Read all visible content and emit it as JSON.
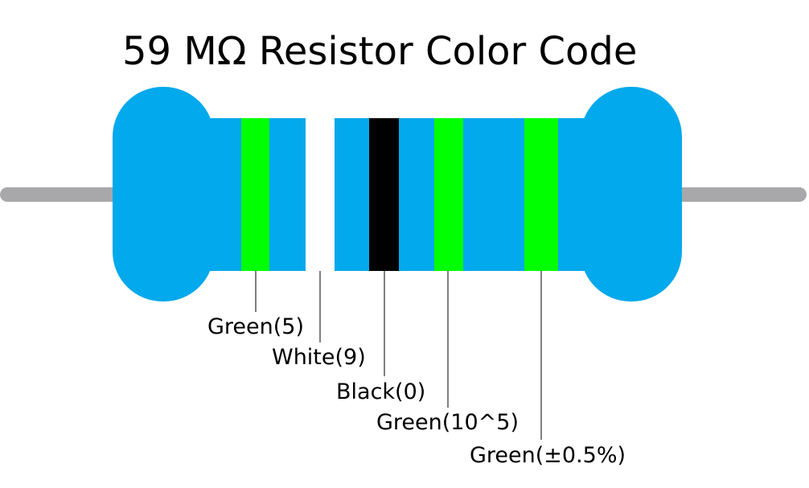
{
  "title": "59 MΩ Resistor Color Code",
  "bands": [
    {
      "label": "Green(5)"
    },
    {
      "label": "White(9)"
    },
    {
      "label": "Black(0)"
    },
    {
      "label": "Green(10^5)"
    },
    {
      "label": "Green(±0.5%)"
    }
  ]
}
